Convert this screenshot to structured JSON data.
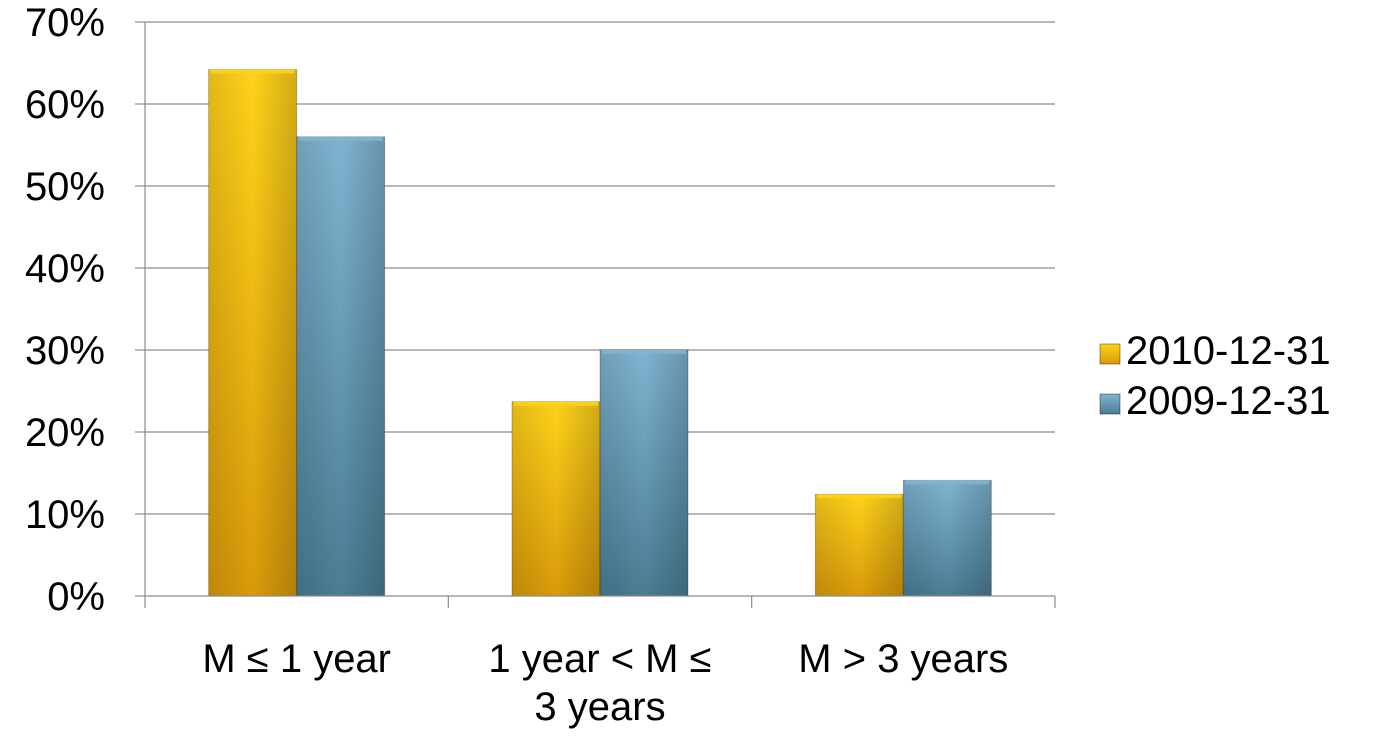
{
  "chart_data": {
    "type": "bar",
    "categories": [
      [
        "M ≤ 1 year"
      ],
      [
        "1 year < M ≤",
        "3 years"
      ],
      [
        "M > 3 years"
      ]
    ],
    "series": [
      {
        "name": "2010-12-31",
        "values": [
          64.2,
          23.7,
          12.4
        ]
      },
      {
        "name": "2009-12-31",
        "values": [
          56.0,
          30.0,
          14.1
        ]
      }
    ],
    "ylim": [
      0,
      70
    ],
    "yticks": [
      "0%",
      "10%",
      "20%",
      "30%",
      "40%",
      "50%",
      "60%",
      "70%"
    ],
    "grid": true,
    "legend_position": "right",
    "colors": {
      "2010-12-31": {
        "top": "#ffd21a",
        "bottom": "#d99a0a",
        "face": "#ffc000"
      },
      "2009-12-31": {
        "top": "#7fb4d1",
        "bottom": "#4a7d94",
        "face": "#5f96b3"
      }
    }
  }
}
